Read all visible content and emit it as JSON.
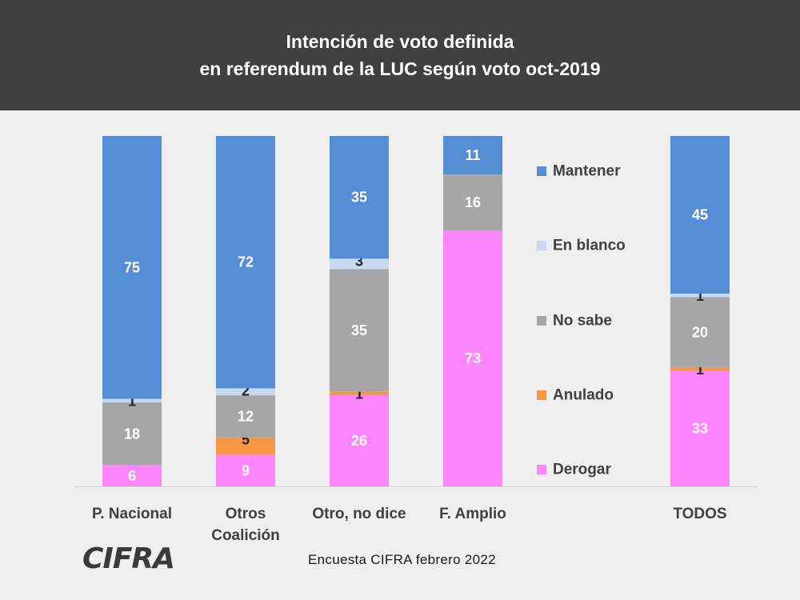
{
  "title": {
    "line1": "Intención de voto definida",
    "line2": "en referendum de la LUC según voto oct-2019"
  },
  "colors": {
    "header_bg": "#404040",
    "page_bg": "#efefef",
    "Mantener": "#558ed5",
    "En blanco": "#c6d9f1",
    "No sabe": "#a6a6a6",
    "Anulado": "#f79646",
    "Derogar": "#ff85ff"
  },
  "chart_data": {
    "type": "bar",
    "stacked": true,
    "categories": [
      [
        "P. Nacional"
      ],
      [
        "Otros",
        "Coalición"
      ],
      [
        "Otro, no dice"
      ],
      [
        "F. Amplio"
      ],
      [
        "TODOS"
      ]
    ],
    "series": [
      {
        "name": "Derogar",
        "values": [
          6,
          9,
          26,
          73,
          33
        ]
      },
      {
        "name": "Anulado",
        "values": [
          0,
          5,
          1,
          0,
          1
        ]
      },
      {
        "name": "No sabe",
        "values": [
          18,
          12,
          35,
          16,
          20
        ]
      },
      {
        "name": "En blanco",
        "values": [
          1,
          2,
          3,
          0,
          1
        ]
      },
      {
        "name": "Mantener",
        "values": [
          75,
          72,
          35,
          11,
          45
        ]
      }
    ],
    "legend": [
      "Mantener",
      "En blanco",
      "No sabe",
      "Anulado",
      "Derogar"
    ],
    "legend_position": "right",
    "ylim": [
      0,
      100
    ],
    "grid": false
  },
  "footer": {
    "logo": "CIFRA",
    "source": "Encuesta CIFRA febrero  2022"
  }
}
